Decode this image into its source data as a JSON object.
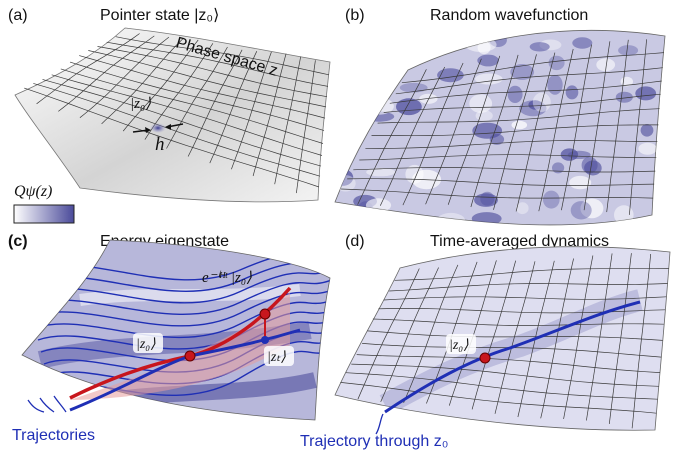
{
  "panels": [
    {
      "letter": "(a)",
      "title": "Pointer state |z₀⟩"
    },
    {
      "letter": "(b)",
      "title": "Random wavefunction"
    },
    {
      "letter": "(c)",
      "title": "Energy eigenstate"
    },
    {
      "letter": "(d)",
      "title": "Time-averaged dynamics"
    }
  ],
  "annotations": {
    "phase_space": "Phase space z",
    "ket_z0": "|z₀⟩",
    "hbar": "h",
    "colorbar_label": "Qψ(z)",
    "evolved_state": "e⁻ⁱᴴᵗ |z₀⟩",
    "ket_zt": "|zₜ⟩",
    "trajectories": "Trajectories",
    "trajectory_through": "Trajectory through z₀"
  },
  "colors": {
    "density": "#5a5aa6",
    "trajectory": "#1f2fb5",
    "evolution": "#c8161d",
    "surface_a": "#e6e6e6"
  }
}
